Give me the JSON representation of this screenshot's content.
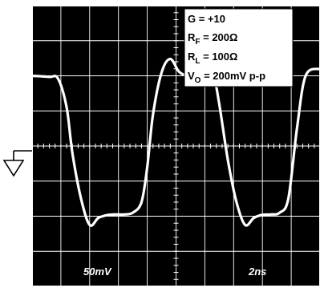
{
  "chart_data": {
    "type": "line",
    "title": "",
    "xlabel": "",
    "ylabel": "",
    "xlim": [
      0,
      10
    ],
    "ylim": [
      -4,
      4
    ],
    "grid": true,
    "grid_divisions": {
      "x": 10,
      "y": 8
    },
    "background_color": "#000000",
    "grid_color": "#ffffff",
    "trace_color": "#ffffff",
    "scale_labels": {
      "vertical": "50mV",
      "horizontal": "2ns"
    },
    "legend": {
      "placement": "top-right",
      "lines": [
        {
          "main": "G = +10"
        },
        {
          "main": "R",
          "sub": "F",
          "rest": " = 200Ω"
        },
        {
          "main": "R",
          "sub": "L",
          "rest": " = 100Ω"
        },
        {
          "main": "V",
          "sub": "O",
          "rest": " = 200mV p-p"
        }
      ]
    },
    "ground_symbol": "ground-icon",
    "series": [
      {
        "x": [
          0,
          0.6,
          0.9,
          1.2,
          1.4,
          1.7,
          2.0,
          2.3,
          2.6,
          2.9,
          3.2,
          3.5,
          3.8,
          4.0,
          4.2,
          4.5,
          4.8,
          5.1,
          5.4,
          5.7,
          6.0,
          6.3,
          6.5,
          6.8,
          7.1,
          7.4,
          7.7,
          8.0,
          8.3,
          8.6,
          8.9,
          9.2,
          9.5,
          10.0
        ],
        "y": [
          2.0,
          1.97,
          1.92,
          1.1,
          -0.2,
          -1.5,
          -2.25,
          -2.05,
          -1.97,
          -1.95,
          -1.95,
          -1.9,
          -1.6,
          -0.6,
          0.9,
          2.1,
          2.48,
          2.12,
          2.0,
          2.0,
          1.98,
          1.97,
          1.2,
          -0.4,
          -1.6,
          -2.25,
          -2.05,
          -1.96,
          -1.95,
          -1.9,
          -1.5,
          0.5,
          2.0,
          2.2
        ]
      }
    ]
  }
}
